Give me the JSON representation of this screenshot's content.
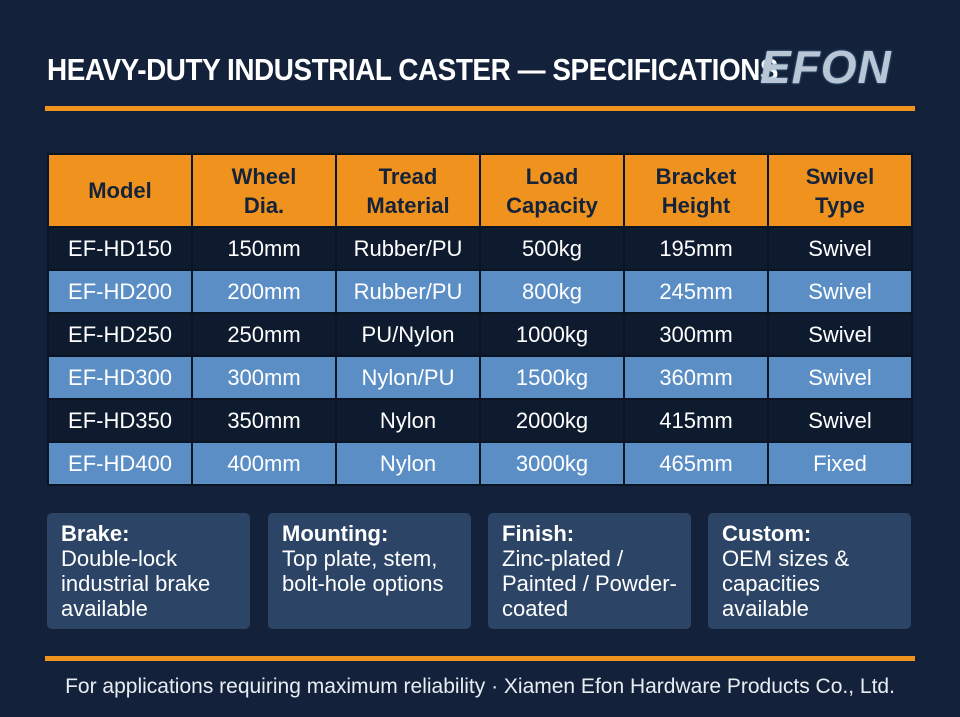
{
  "header": {
    "title": "HEAVY-DUTY INDUSTRIAL CASTER — SPECIFICATIONS",
    "logo": "EFON"
  },
  "table": {
    "columns": [
      "Model",
      "Wheel Dia.",
      "Tread Material",
      "Load Capacity",
      "Bracket Height",
      "Swivel Type"
    ],
    "rows": [
      [
        "EF-HD150",
        "150mm",
        "Rubber/PU",
        "500kg",
        "195mm",
        "Swivel"
      ],
      [
        "EF-HD200",
        "200mm",
        "Rubber/PU",
        "800kg",
        "245mm",
        "Swivel"
      ],
      [
        "EF-HD250",
        "250mm",
        "PU/Nylon",
        "1000kg",
        "300mm",
        "Swivel"
      ],
      [
        "EF-HD300",
        "300mm",
        "Nylon/PU",
        "1500kg",
        "360mm",
        "Swivel"
      ],
      [
        "EF-HD350",
        "350mm",
        "Nylon",
        "2000kg",
        "415mm",
        "Swivel"
      ],
      [
        "EF-HD400",
        "400mm",
        "Nylon",
        "3000kg",
        "465mm",
        "Fixed"
      ]
    ]
  },
  "features": [
    {
      "label": "Brake:",
      "text": "Double-lock industrial brake available"
    },
    {
      "label": "Mounting:",
      "text": "Top plate, stem, bolt-hole options"
    },
    {
      "label": "Finish:",
      "text": "Zinc-plated / Painted / Powder-coated"
    },
    {
      "label": "Custom:",
      "text": "OEM sizes & capacities available"
    }
  ],
  "footer": {
    "text": "For applications requiring maximum reliability · Xiamen Efon Hardware Products Co., Ltd."
  }
}
